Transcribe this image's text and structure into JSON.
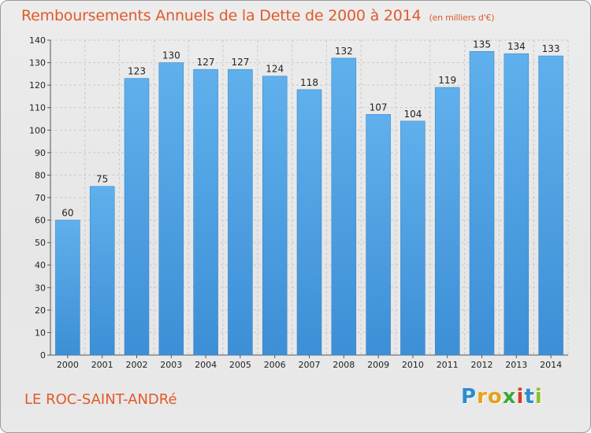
{
  "chart_data": {
    "type": "bar",
    "title": "Remboursements Annuels de la Dette de 2000 à 2014",
    "subtitle": "(en milliers d'€)",
    "categories": [
      "2000",
      "2001",
      "2002",
      "2003",
      "2004",
      "2005",
      "2006",
      "2007",
      "2008",
      "2009",
      "2010",
      "2011",
      "2012",
      "2013",
      "2014"
    ],
    "values": [
      60,
      75,
      123,
      130,
      127,
      127,
      124,
      118,
      132,
      107,
      104,
      119,
      135,
      134,
      133
    ],
    "ylim": [
      0,
      140
    ],
    "yticks": [
      0,
      10,
      20,
      30,
      40,
      50,
      60,
      70,
      80,
      90,
      100,
      110,
      120,
      130,
      140
    ],
    "grid": true,
    "xlabel": "",
    "ylabel": "",
    "bar_color": "#3d8fd6",
    "bar_color_light": "#5fb0ec"
  },
  "footer": {
    "place": "LE ROC-SAINT-ANDRé",
    "logo_letters": [
      "P",
      "r",
      "o",
      "x",
      "i",
      "t",
      "i"
    ],
    "logo_colors": [
      "#2d8bd0",
      "#e8a01a",
      "#e8a01a",
      "#3aa83a",
      "#d63b2a",
      "#2d8bd0",
      "#8bbf2c"
    ]
  },
  "colors": {
    "title": "#e05a2a",
    "grid": "#c9c9c9"
  }
}
